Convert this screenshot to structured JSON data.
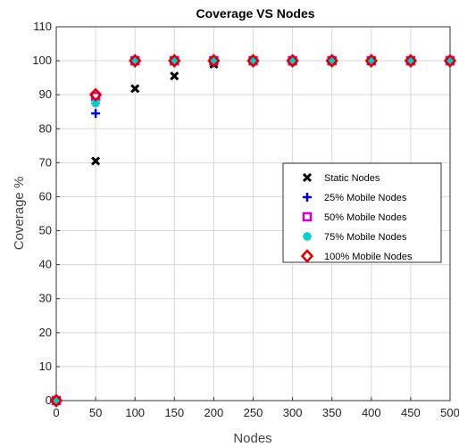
{
  "chart_data": {
    "type": "scatter",
    "title": "Coverage VS Nodes",
    "xlabel": "Nodes",
    "ylabel": "Coverage %",
    "xlim": [
      0,
      500
    ],
    "ylim": [
      0,
      110
    ],
    "xticks": [
      0,
      50,
      100,
      150,
      200,
      250,
      300,
      350,
      400,
      450,
      500
    ],
    "yticks": [
      0,
      10,
      20,
      30,
      40,
      50,
      60,
      70,
      80,
      90,
      100,
      110
    ],
    "grid": true,
    "legend_position": "center-right",
    "series": [
      {
        "name": "Static Nodes",
        "marker": "x",
        "color": "#000000",
        "x": [
          0,
          50,
          100,
          150,
          200,
          250,
          300,
          350,
          400,
          450,
          500
        ],
        "y": [
          0,
          70.5,
          91.8,
          95.5,
          99,
          100,
          99.8,
          100,
          100,
          100,
          100
        ]
      },
      {
        "name": "25%  Mobile Nodes",
        "marker": "plus",
        "color": "#0000cc",
        "x": [
          0,
          50,
          100,
          150,
          200,
          250,
          300,
          350,
          400,
          450,
          500
        ],
        "y": [
          0,
          84.5,
          100,
          100,
          100,
          100,
          100,
          100,
          100,
          100,
          100
        ]
      },
      {
        "name": "50%  Mobile Nodes",
        "marker": "square",
        "color": "#cc00cc",
        "x": [
          0,
          50,
          100,
          150,
          200,
          250,
          300,
          350,
          400,
          450,
          500
        ],
        "y": [
          0,
          89.5,
          100,
          100,
          100,
          100,
          100,
          100,
          100,
          100,
          100
        ]
      },
      {
        "name": "75%  Mobile Nodes",
        "marker": "asterisk",
        "color": "#00cccc",
        "x": [
          0,
          50,
          100,
          150,
          200,
          250,
          300,
          350,
          400,
          450,
          500
        ],
        "y": [
          0,
          87.5,
          100,
          100,
          100,
          100,
          100,
          100,
          100,
          100,
          100
        ]
      },
      {
        "name": "100%  Mobile Nodes",
        "marker": "diamond",
        "color": "#dd0000",
        "x": [
          0,
          50,
          100,
          150,
          200,
          250,
          300,
          350,
          400,
          450,
          500
        ],
        "y": [
          0,
          90,
          100,
          100,
          100,
          100,
          100,
          100,
          100,
          100,
          100
        ]
      }
    ]
  }
}
